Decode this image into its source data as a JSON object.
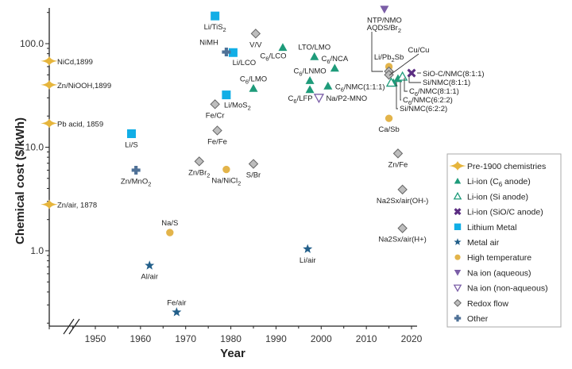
{
  "chart_data": {
    "type": "scatter",
    "title": "",
    "xlabel": "Year",
    "ylabel": "Chemical cost ($/kWh)",
    "yscale": "log",
    "xlim": [
      1941,
      2023
    ],
    "ylim": [
      0.19,
      260
    ],
    "grid": false,
    "legend_position": "right",
    "x_ticks": [
      1950,
      1960,
      1970,
      1980,
      1990,
      2000,
      2010,
      2020
    ],
    "y_ticks": [
      {
        "value": 1,
        "label": "1.0"
      },
      {
        "value": 10,
        "label": "10.0"
      },
      {
        "value": 100,
        "label": "100.0"
      }
    ],
    "axis_break": true,
    "categories": [
      {
        "key": "pre1900",
        "label": "Pre-1900 chemistries",
        "marker": "pre-diamond",
        "color": "#e6b53c"
      },
      {
        "key": "c6",
        "label": "Li-ion (C6 anode)",
        "label_parts": [
          "Li-ion (C",
          "6",
          " anode)"
        ],
        "marker": "triangle-up",
        "color": "#1e9b7a"
      },
      {
        "key": "si",
        "label": "Li-ion (Si anode)",
        "marker": "triangle-up-open",
        "color": "#1e9b7a"
      },
      {
        "key": "sioc",
        "label": "Li-ion (SiO/C anode)",
        "marker": "x",
        "color": "#5b2d82"
      },
      {
        "key": "limetal",
        "label": "Lithium Metal",
        "marker": "square",
        "color": "#11aee6"
      },
      {
        "key": "metalair",
        "label": "Metal air",
        "marker": "star",
        "color": "#225f8a"
      },
      {
        "key": "hightemp",
        "label": "High temperature",
        "marker": "circle",
        "color": "#e3b44a"
      },
      {
        "key": "naaq",
        "label": "Na ion (aqueous)",
        "marker": "triangle-down",
        "color": "#7b5ea7"
      },
      {
        "key": "nanonaq",
        "label": "Na ion (non-aqueous)",
        "marker": "triangle-down-open",
        "color": "#7b5ea7"
      },
      {
        "key": "redox",
        "label": "Redox flow",
        "marker": "diamond",
        "color": "#bdbdbd"
      },
      {
        "key": "other",
        "label": "Other",
        "marker": "plus",
        "color": "#4f7197"
      }
    ],
    "points": [
      {
        "label": "NiCd,1899",
        "cat": "pre1900",
        "x": 1941,
        "y": 68,
        "lpos": "right"
      },
      {
        "label": "Zn/NiOOH,1899",
        "cat": "pre1900",
        "x": 1941,
        "y": 40,
        "lpos": "right"
      },
      {
        "label": "Pb acid, 1859",
        "cat": "pre1900",
        "x": 1941,
        "y": 17,
        "lpos": "right"
      },
      {
        "label": "Zn/air, 1878",
        "cat": "pre1900",
        "x": 1941,
        "y": 2.8,
        "lpos": "right"
      },
      {
        "label": "C6/LCO",
        "sub": [
          "C",
          "6",
          "/LCO"
        ],
        "cat": "c6",
        "x": 1991.5,
        "y": 92,
        "lpos": "below-left"
      },
      {
        "label": "C6/LMO",
        "sub": [
          "C",
          "6",
          "/LMO"
        ],
        "cat": "c6",
        "x": 1985,
        "y": 37,
        "lpos": "above"
      },
      {
        "label": "LTO/LMO",
        "cat": "c6",
        "x": 1998.5,
        "y": 75,
        "lpos": "above"
      },
      {
        "label": "C6/NCA",
        "sub": [
          "C",
          "6",
          "/NCA"
        ],
        "cat": "c6",
        "x": 2003,
        "y": 58,
        "lpos": "above"
      },
      {
        "label": "C6/LNMO",
        "sub": [
          "C",
          "6",
          "/LNMO"
        ],
        "cat": "c6",
        "x": 1997.5,
        "y": 44,
        "lpos": "above"
      },
      {
        "label": "C6/LFP",
        "sub": [
          "C",
          "6",
          "/LFP"
        ],
        "cat": "c6",
        "x": 1997.5,
        "y": 36,
        "lpos": "below-left"
      },
      {
        "label": "C6/NMC(1:1:1)",
        "sub": [
          "C",
          "6",
          "/NMC(1:1:1)"
        ],
        "cat": "c6",
        "x": 2001.5,
        "y": 39,
        "lpos": "right"
      },
      {
        "label": "C6/NMC(8:1:1)",
        "sub": [
          "C",
          "6",
          "/NMC(8:1:1)"
        ],
        "cat": "c6",
        "x": 2017,
        "y": 46,
        "lpos": "callout"
      },
      {
        "label": "C6/NMC(6:2:2)",
        "sub": [
          "C",
          "6",
          "/NMC(6:2:2)"
        ],
        "cat": "c6",
        "x": 2016,
        "y": 42,
        "lpos": "callout"
      },
      {
        "label": "Si/NMC(8:1:1)",
        "cat": "si",
        "x": 2018,
        "y": 48,
        "lpos": "callout"
      },
      {
        "label": "Si/NMC(6:2:2)",
        "cat": "si",
        "x": 2015.5,
        "y": 42,
        "lpos": "callout"
      },
      {
        "label": "SiO-C/NMC(8:1:1)",
        "cat": "sioc",
        "x": 2020,
        "y": 52,
        "lpos": "callout"
      },
      {
        "label": "Li/TiS2",
        "sub": [
          "Li/TiS",
          "2",
          ""
        ],
        "cat": "limetal",
        "x": 1976.5,
        "y": 185,
        "lpos": "below"
      },
      {
        "label": "Li/LCO",
        "cat": "limetal",
        "x": 1980.5,
        "y": 82,
        "lpos": "below-right"
      },
      {
        "label": "Li/MoS2",
        "sub": [
          "Li/MoS",
          "2",
          ""
        ],
        "cat": "limetal",
        "x": 1979,
        "y": 32,
        "lpos": "below-right"
      },
      {
        "label": "Li/S",
        "cat": "limetal",
        "x": 1958,
        "y": 13.5,
        "lpos": "below"
      },
      {
        "label": "Al/air",
        "cat": "metalair",
        "x": 1962,
        "y": 0.72,
        "lpos": "below"
      },
      {
        "label": "Fe/air",
        "cat": "metalair",
        "x": 1968,
        "y": 0.255,
        "lpos": "above"
      },
      {
        "label": "Li/air",
        "cat": "metalair",
        "x": 1997,
        "y": 1.04,
        "lpos": "below"
      },
      {
        "label": "Na/S",
        "cat": "hightemp",
        "x": 1966.5,
        "y": 1.5,
        "lpos": "above"
      },
      {
        "label": "Na/NiCl2",
        "sub": [
          "Na/NiCl",
          "2",
          ""
        ],
        "cat": "hightemp",
        "x": 1979,
        "y": 6.1,
        "lpos": "below"
      },
      {
        "label": "Ca/Sb",
        "cat": "hightemp",
        "x": 2015,
        "y": 19,
        "lpos": "below"
      },
      {
        "label": "Li/Pb2Sb",
        "sub": [
          "Li/Pb",
          "2",
          "Sb"
        ],
        "cat": "hightemp",
        "x": 2015,
        "y": 60,
        "lpos": "above"
      },
      {
        "label": "NTP/NMO",
        "cat": "naaq",
        "x": 2014,
        "y": 215,
        "lpos": "below"
      },
      {
        "label": "Na/P2-MNO",
        "cat": "nanonaq",
        "x": 1999.5,
        "y": 30,
        "lpos": "right"
      },
      {
        "label": "V/V",
        "cat": "redox",
        "x": 1985.5,
        "y": 125,
        "lpos": "below"
      },
      {
        "label": "Fe/Cr",
        "cat": "redox",
        "x": 1976.5,
        "y": 26,
        "lpos": "below"
      },
      {
        "label": "Fe/Fe",
        "cat": "redox",
        "x": 1977,
        "y": 14.5,
        "lpos": "below"
      },
      {
        "label": "Zn/Br2",
        "sub": [
          "Zn/Br",
          "2",
          ""
        ],
        "cat": "redox",
        "x": 1973,
        "y": 7.3,
        "lpos": "below"
      },
      {
        "label": "S/Br",
        "cat": "redox",
        "x": 1985,
        "y": 6.9,
        "lpos": "below"
      },
      {
        "label": "AQDS/Br2",
        "sub": [
          "AQDS/Br",
          "2",
          ""
        ],
        "cat": "redox",
        "x": 2015,
        "y": 54,
        "lpos": "callout"
      },
      {
        "label": "Cu/Cu",
        "cat": "redox",
        "x": 2015,
        "y": 50,
        "lpos": "callout"
      },
      {
        "label": "Zn/Fe",
        "cat": "redox",
        "x": 2017,
        "y": 8.7,
        "lpos": "below"
      },
      {
        "label": "Na2Sx/air(OH-)",
        "cat": "redox",
        "x": 2018,
        "y": 3.9,
        "lpos": "below"
      },
      {
        "label": "Na2Sx/air(H+)",
        "cat": "redox",
        "x": 2018,
        "y": 1.65,
        "lpos": "below"
      },
      {
        "label": "NiMH",
        "cat": "other",
        "x": 1979,
        "y": 83,
        "lpos": "above-left"
      },
      {
        "label": "Zn/MnO2",
        "sub": [
          "Zn/MnO",
          "2",
          ""
        ],
        "cat": "other",
        "x": 1959,
        "y": 6.0,
        "lpos": "below"
      }
    ]
  }
}
